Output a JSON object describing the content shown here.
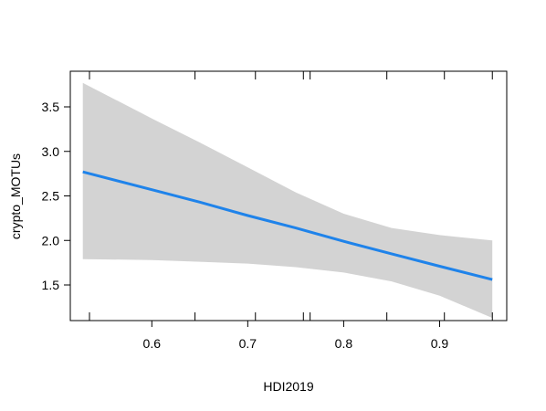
{
  "chart_data": {
    "type": "line",
    "title": "",
    "xlabel": "HDI2019",
    "ylabel": "crypto_MOTUs",
    "xlim": [
      0.515,
      0.97
    ],
    "ylim": [
      1.1,
      3.9
    ],
    "x_ticks": [
      0.6,
      0.7,
      0.8,
      0.9
    ],
    "x_tick_labels": [
      "0.6",
      "0.7",
      "0.8",
      "0.9"
    ],
    "y_ticks": [
      1.5,
      2.0,
      2.5,
      3.0,
      3.5
    ],
    "y_tick_labels": [
      "1.5",
      "2.0",
      "2.5",
      "3.0",
      "3.5"
    ],
    "rug_x": [
      0.535,
      0.645,
      0.708,
      0.758,
      0.765,
      0.845,
      0.905,
      0.955
    ],
    "series": [
      {
        "name": "fit",
        "color": "#1f83ea",
        "x": [
          0.528,
          0.6,
          0.65,
          0.7,
          0.75,
          0.8,
          0.85,
          0.9,
          0.955
        ],
        "y": [
          2.77,
          2.57,
          2.43,
          2.28,
          2.14,
          1.99,
          1.85,
          1.71,
          1.56
        ]
      }
    ],
    "confidence_band": {
      "color": "#d3d3d3",
      "x": [
        0.528,
        0.6,
        0.65,
        0.7,
        0.75,
        0.8,
        0.85,
        0.9,
        0.955
      ],
      "upper": [
        3.77,
        3.37,
        3.1,
        2.82,
        2.54,
        2.3,
        2.14,
        2.06,
        2.0
      ],
      "lower": [
        1.79,
        1.78,
        1.76,
        1.74,
        1.7,
        1.64,
        1.54,
        1.38,
        1.13
      ]
    }
  }
}
